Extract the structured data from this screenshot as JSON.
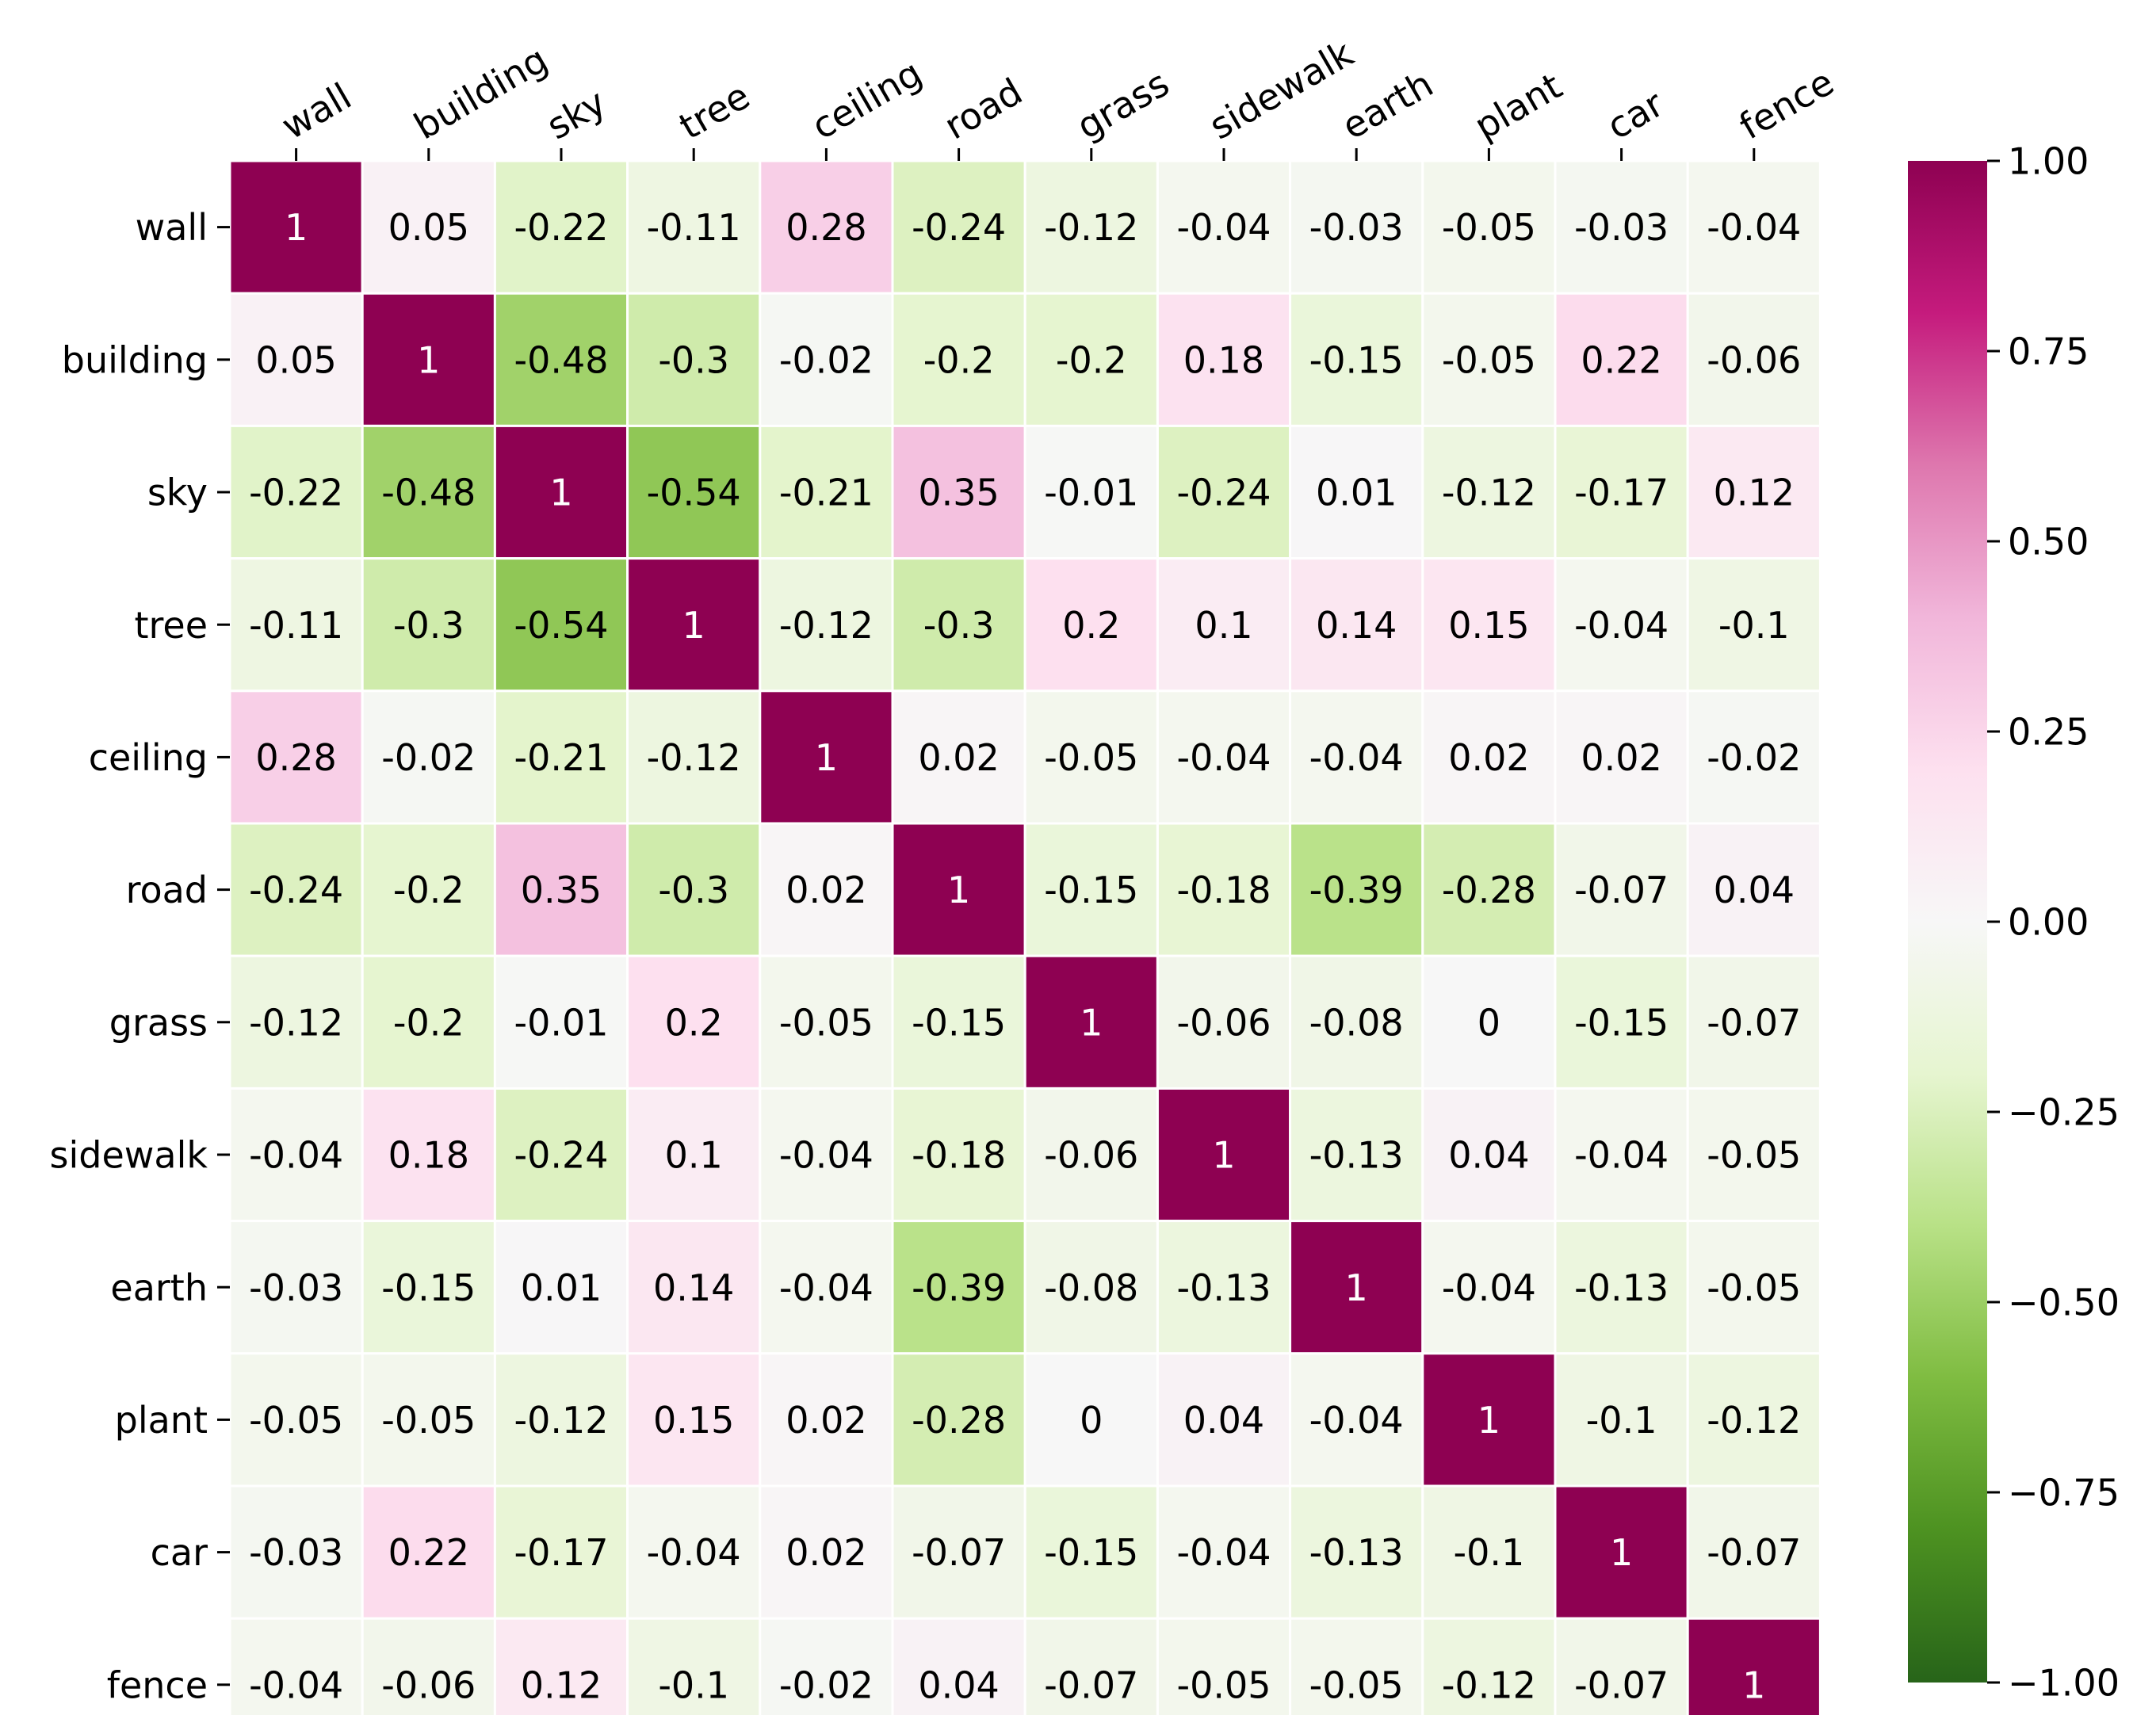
{
  "chart_data": {
    "type": "heatmap",
    "title": "",
    "xlabel": "",
    "ylabel": "",
    "labels": [
      "wall",
      "building",
      "sky",
      "tree",
      "ceiling",
      "road",
      "grass",
      "sidewalk",
      "earth",
      "plant",
      "car",
      "fence"
    ],
    "values": [
      [
        "1",
        "0.05",
        "-0.22",
        "-0.11",
        "0.28",
        "-0.24",
        "-0.12",
        "-0.04",
        "-0.03",
        "-0.05",
        "-0.03",
        "-0.04"
      ],
      [
        "0.05",
        "1",
        "-0.48",
        "-0.3",
        "-0.02",
        "-0.2",
        "-0.2",
        "0.18",
        "-0.15",
        "-0.05",
        "0.22",
        "-0.06"
      ],
      [
        "-0.22",
        "-0.48",
        "1",
        "-0.54",
        "-0.21",
        "0.35",
        "-0.01",
        "-0.24",
        "0.01",
        "-0.12",
        "-0.17",
        "0.12"
      ],
      [
        "-0.11",
        "-0.3",
        "-0.54",
        "1",
        "-0.12",
        "-0.3",
        "0.2",
        "0.1",
        "0.14",
        "0.15",
        "-0.04",
        "-0.1"
      ],
      [
        "0.28",
        "-0.02",
        "-0.21",
        "-0.12",
        "1",
        "0.02",
        "-0.05",
        "-0.04",
        "-0.04",
        "0.02",
        "0.02",
        "-0.02"
      ],
      [
        "-0.24",
        "-0.2",
        "0.35",
        "-0.3",
        "0.02",
        "1",
        "-0.15",
        "-0.18",
        "-0.39",
        "-0.28",
        "-0.07",
        "0.04"
      ],
      [
        "-0.12",
        "-0.2",
        "-0.01",
        "0.2",
        "-0.05",
        "-0.15",
        "1",
        "-0.06",
        "-0.08",
        "0",
        "-0.15",
        "-0.07"
      ],
      [
        "-0.04",
        "0.18",
        "-0.24",
        "0.1",
        "-0.04",
        "-0.18",
        "-0.06",
        "1",
        "-0.13",
        "0.04",
        "-0.04",
        "-0.05"
      ],
      [
        "-0.03",
        "-0.15",
        "0.01",
        "0.14",
        "-0.04",
        "-0.39",
        "-0.08",
        "-0.13",
        "1",
        "-0.04",
        "-0.13",
        "-0.05"
      ],
      [
        "-0.05",
        "-0.05",
        "-0.12",
        "0.15",
        "0.02",
        "-0.28",
        "0",
        "0.04",
        "-0.04",
        "1",
        "-0.1",
        "-0.12"
      ],
      [
        "-0.03",
        "0.22",
        "-0.17",
        "-0.04",
        "0.02",
        "-0.07",
        "-0.15",
        "-0.04",
        "-0.13",
        "-0.1",
        "1",
        "-0.07"
      ],
      [
        "-0.04",
        "-0.06",
        "0.12",
        "-0.1",
        "-0.02",
        "0.04",
        "-0.07",
        "-0.05",
        "-0.05",
        "-0.12",
        "-0.07",
        "1"
      ]
    ],
    "colorbar": {
      "range": [
        -1,
        1
      ],
      "ticks": [
        "1.00",
        "0.75",
        "0.50",
        "0.25",
        "0.00",
        "−0.25",
        "−0.50",
        "−0.75",
        "−1.00"
      ],
      "tick_values": [
        1,
        0.75,
        0.5,
        0.25,
        0,
        -0.25,
        -0.5,
        -0.75,
        -1
      ]
    },
    "colormap": "PiYG_r",
    "colormap_stops": [
      "#276419",
      "#4d9221",
      "#7fbc41",
      "#b8e186",
      "#e6f5d0",
      "#f7f7f7",
      "#fde0ef",
      "#f1b6da",
      "#de77ae",
      "#c51b7d",
      "#8e0152"
    ],
    "grid_line_color": "#ffffff"
  }
}
